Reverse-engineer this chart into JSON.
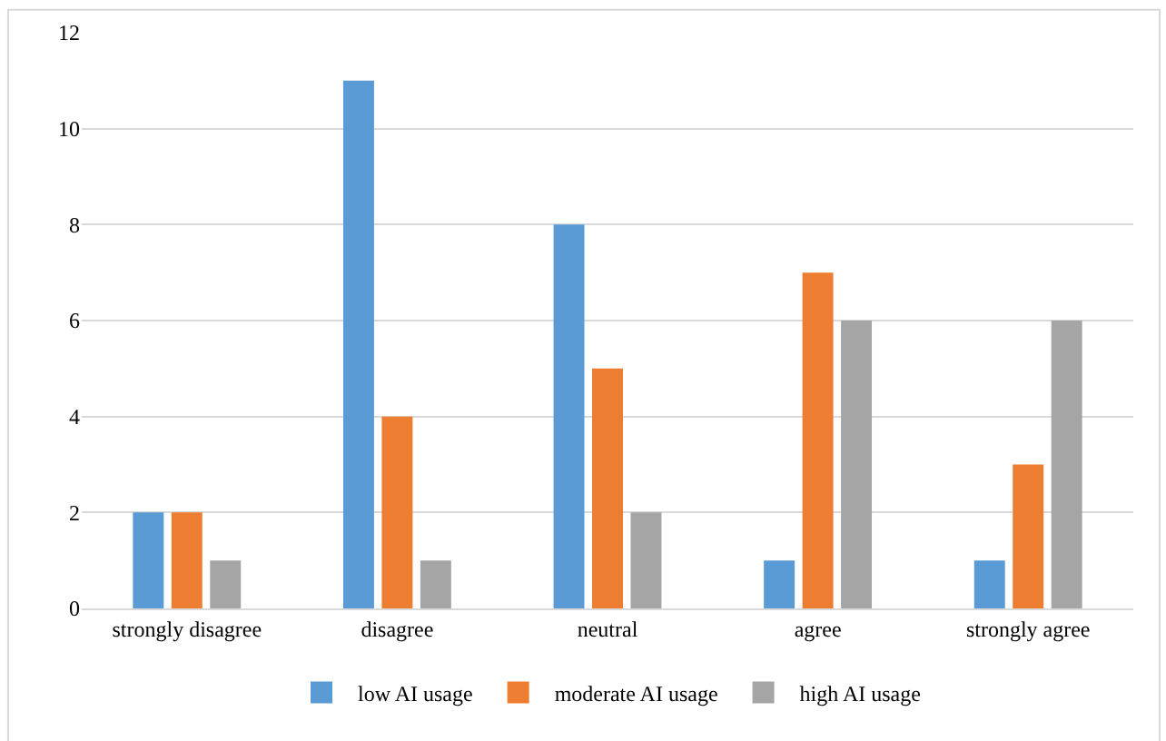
{
  "chart_data": {
    "type": "bar",
    "categories": [
      "strongly disagree",
      "disagree",
      "neutral",
      "agree",
      "strongly agree"
    ],
    "series": [
      {
        "name": "low AI usage",
        "color": "#5b9bd5",
        "values": [
          2,
          11,
          8,
          1,
          1
        ]
      },
      {
        "name": "moderate AI usage",
        "color": "#ed7d31",
        "values": [
          2,
          4,
          5,
          7,
          3
        ]
      },
      {
        "name": "high AI usage",
        "color": "#a5a5a5",
        "values": [
          1,
          1,
          2,
          6,
          6
        ]
      }
    ],
    "ylim": [
      0,
      12
    ],
    "yticks": [
      0,
      2,
      4,
      6,
      8,
      10,
      12
    ],
    "grid": "y",
    "legend": "bottom"
  }
}
